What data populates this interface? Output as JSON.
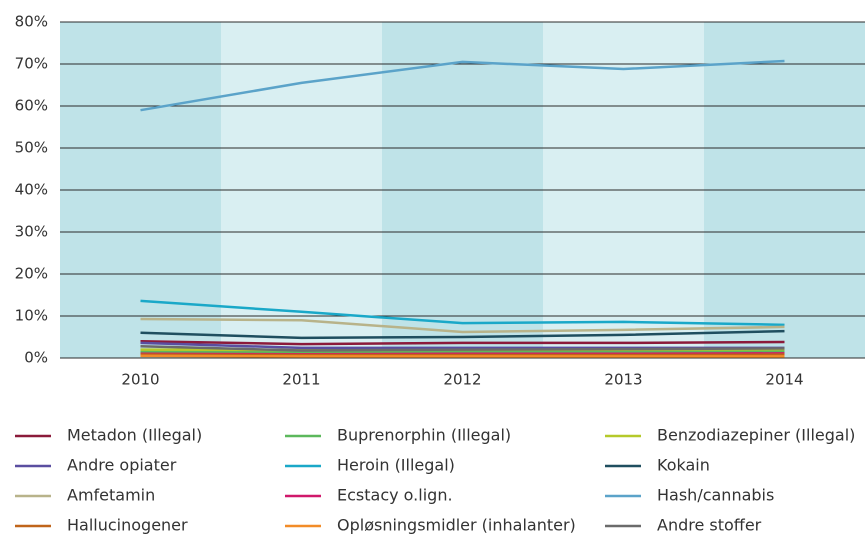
{
  "chart_data": {
    "type": "line",
    "categories": [
      "2010",
      "2011",
      "2012",
      "2013",
      "2014"
    ],
    "ylim": [
      0,
      80
    ],
    "yticks": [
      {
        "value": 0,
        "label": "0%"
      },
      {
        "value": 10,
        "label": "10%"
      },
      {
        "value": 20,
        "label": "20%"
      },
      {
        "value": 30,
        "label": "30%"
      },
      {
        "value": 40,
        "label": "40%"
      },
      {
        "value": 50,
        "label": "50%"
      },
      {
        "value": 60,
        "label": "60%"
      },
      {
        "value": 70,
        "label": "70%"
      },
      {
        "value": 80,
        "label": "80%"
      }
    ],
    "grid": true,
    "series": [
      {
        "name": "Metadon (Illegal)",
        "color": "#8b1a3a",
        "values": [
          4.0,
          3.3,
          3.6,
          3.6,
          3.8
        ]
      },
      {
        "name": "Buprenorphin (Illegal)",
        "color": "#5cb85c",
        "values": [
          1.5,
          1.4,
          1.5,
          1.5,
          1.6
        ]
      },
      {
        "name": "Benzodiazepiner (Illegal)",
        "color": "#b5c92a",
        "values": [
          2.0,
          1.9,
          2.0,
          2.0,
          2.1
        ]
      },
      {
        "name": "Andre opiater",
        "color": "#5a4ea0",
        "values": [
          3.6,
          2.4,
          2.4,
          2.4,
          2.4
        ]
      },
      {
        "name": "Heroin (Illegal)",
        "color": "#1aa8c8",
        "values": [
          13.6,
          11.0,
          8.3,
          8.6,
          7.9
        ]
      },
      {
        "name": "Kokain",
        "color": "#1f4e5f",
        "values": [
          6.0,
          4.8,
          5.0,
          5.5,
          6.4
        ]
      },
      {
        "name": "Amfetamin",
        "color": "#b8b38a",
        "values": [
          9.3,
          9.0,
          6.2,
          6.7,
          7.4
        ]
      },
      {
        "name": "Ecstacy o.lign.",
        "color": "#d0186b",
        "values": [
          1.0,
          0.9,
          1.0,
          1.0,
          1.1
        ]
      },
      {
        "name": "Hash/cannabis",
        "color": "#5ba3c9",
        "values": [
          59.0,
          65.5,
          70.5,
          68.8,
          70.7
        ]
      },
      {
        "name": "Hallucinogener",
        "color": "#c0651a",
        "values": [
          0.8,
          0.7,
          0.7,
          0.7,
          0.8
        ]
      },
      {
        "name": "Opløsningsmidler (inhalanter)",
        "color": "#f28c28",
        "values": [
          0.5,
          0.4,
          0.4,
          0.4,
          0.4
        ]
      },
      {
        "name": "Andre stoffer",
        "color": "#6b6b6b",
        "values": [
          2.8,
          1.8,
          2.0,
          2.1,
          2.3
        ]
      }
    ]
  }
}
